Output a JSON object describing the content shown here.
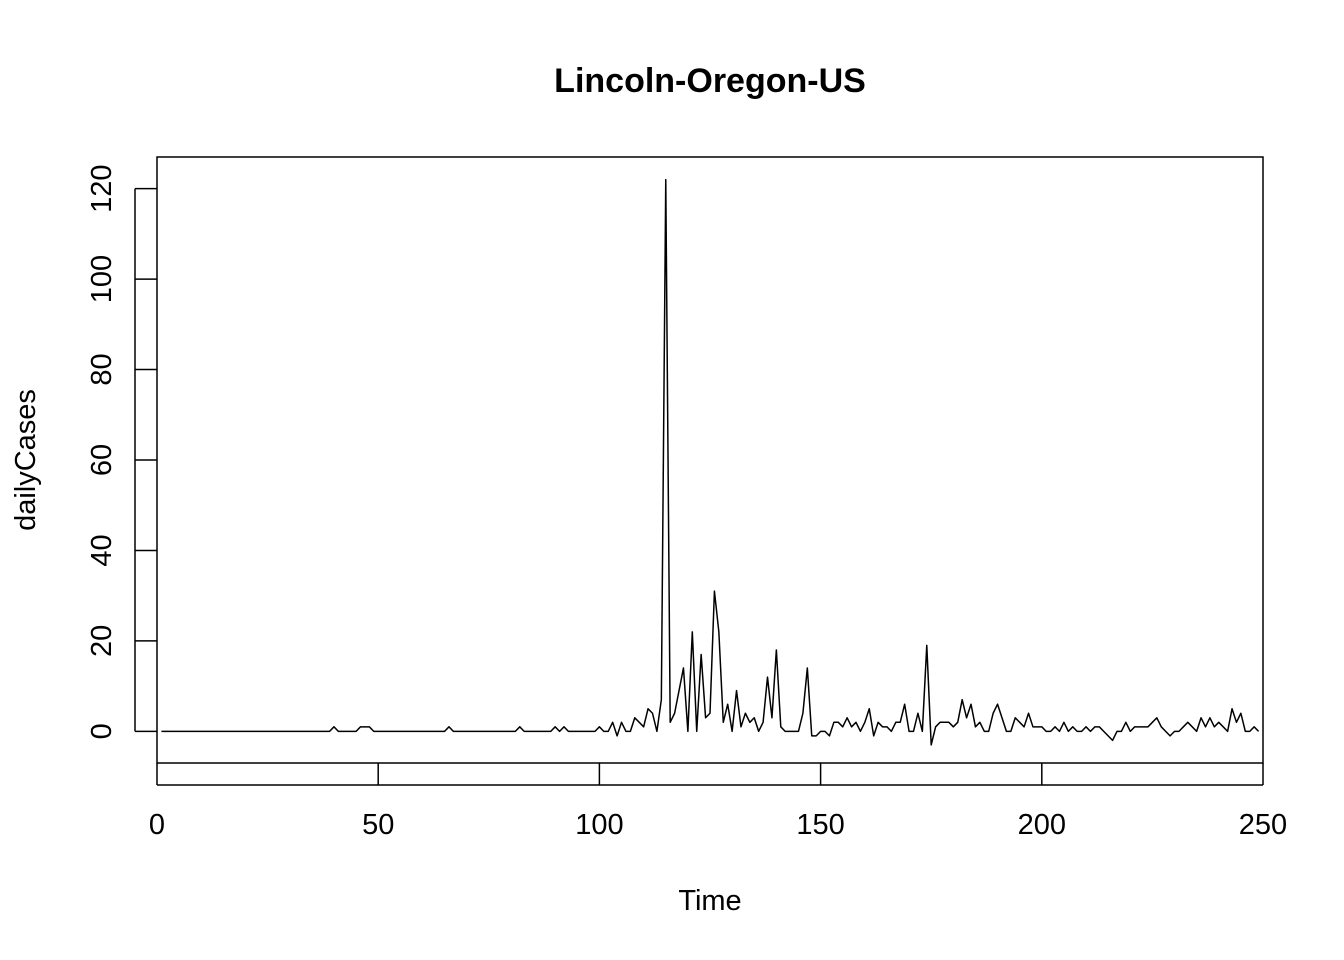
{
  "chart_data": {
    "type": "line",
    "title": "Lincoln-Oregon-US",
    "xlabel": "Time",
    "ylabel": "dailyCases",
    "xlim": [
      0,
      250
    ],
    "ylim": [
      -7,
      127
    ],
    "x_ticks": [
      0,
      50,
      100,
      150,
      200,
      250
    ],
    "y_ticks": [
      0,
      20,
      40,
      60,
      80,
      100,
      120
    ],
    "grid": false,
    "legend": "none",
    "line_color": "#000000",
    "series": [
      {
        "x_start": 1,
        "x_step": 1,
        "values": [
          0,
          0,
          0,
          0,
          0,
          0,
          0,
          0,
          0,
          0,
          0,
          0,
          0,
          0,
          0,
          0,
          0,
          0,
          0,
          0,
          0,
          0,
          0,
          0,
          0,
          0,
          0,
          0,
          0,
          0,
          0,
          0,
          0,
          0,
          0,
          0,
          0,
          0,
          0,
          1,
          0,
          0,
          0,
          0,
          0,
          1,
          1,
          1,
          0,
          0,
          0,
          0,
          0,
          0,
          0,
          0,
          0,
          0,
          0,
          0,
          0,
          0,
          0,
          0,
          0,
          1,
          0,
          0,
          0,
          0,
          0,
          0,
          0,
          0,
          0,
          0,
          0,
          0,
          0,
          0,
          0,
          1,
          0,
          0,
          0,
          0,
          0,
          0,
          0,
          1,
          0,
          1,
          0,
          0,
          0,
          0,
          0,
          0,
          0,
          1,
          0,
          0,
          2,
          -1,
          2,
          0,
          0,
          3,
          2,
          1,
          5,
          4,
          0,
          7,
          122,
          2,
          4,
          9,
          14,
          0,
          22,
          0,
          17,
          3,
          4,
          31,
          22,
          2,
          6,
          0,
          9,
          1,
          4,
          2,
          3,
          0,
          2,
          12,
          3,
          18,
          1,
          0,
          0,
          0,
          0,
          4,
          14,
          -1,
          -1,
          0,
          0,
          -1,
          2,
          2,
          1,
          3,
          1,
          2,
          0,
          2,
          5,
          -1,
          2,
          1,
          1,
          0,
          2,
          2,
          6,
          0,
          0,
          4,
          0,
          19,
          -3,
          1,
          2,
          2,
          2,
          1,
          2,
          7,
          3,
          6,
          1,
          2,
          0,
          0,
          4,
          6,
          3,
          0,
          0,
          3,
          2,
          1,
          4,
          1,
          1,
          1,
          0,
          0,
          1,
          0,
          2,
          0,
          1,
          0,
          0,
          1,
          0,
          1,
          1,
          0,
          -1,
          -2,
          0,
          0,
          2,
          0,
          1,
          1,
          1,
          1,
          2,
          3,
          1,
          0,
          -1,
          0,
          0,
          1,
          2,
          1,
          0,
          3,
          1,
          3,
          1,
          2,
          1,
          0,
          5,
          2,
          4,
          0,
          0,
          1,
          0
        ]
      }
    ]
  }
}
